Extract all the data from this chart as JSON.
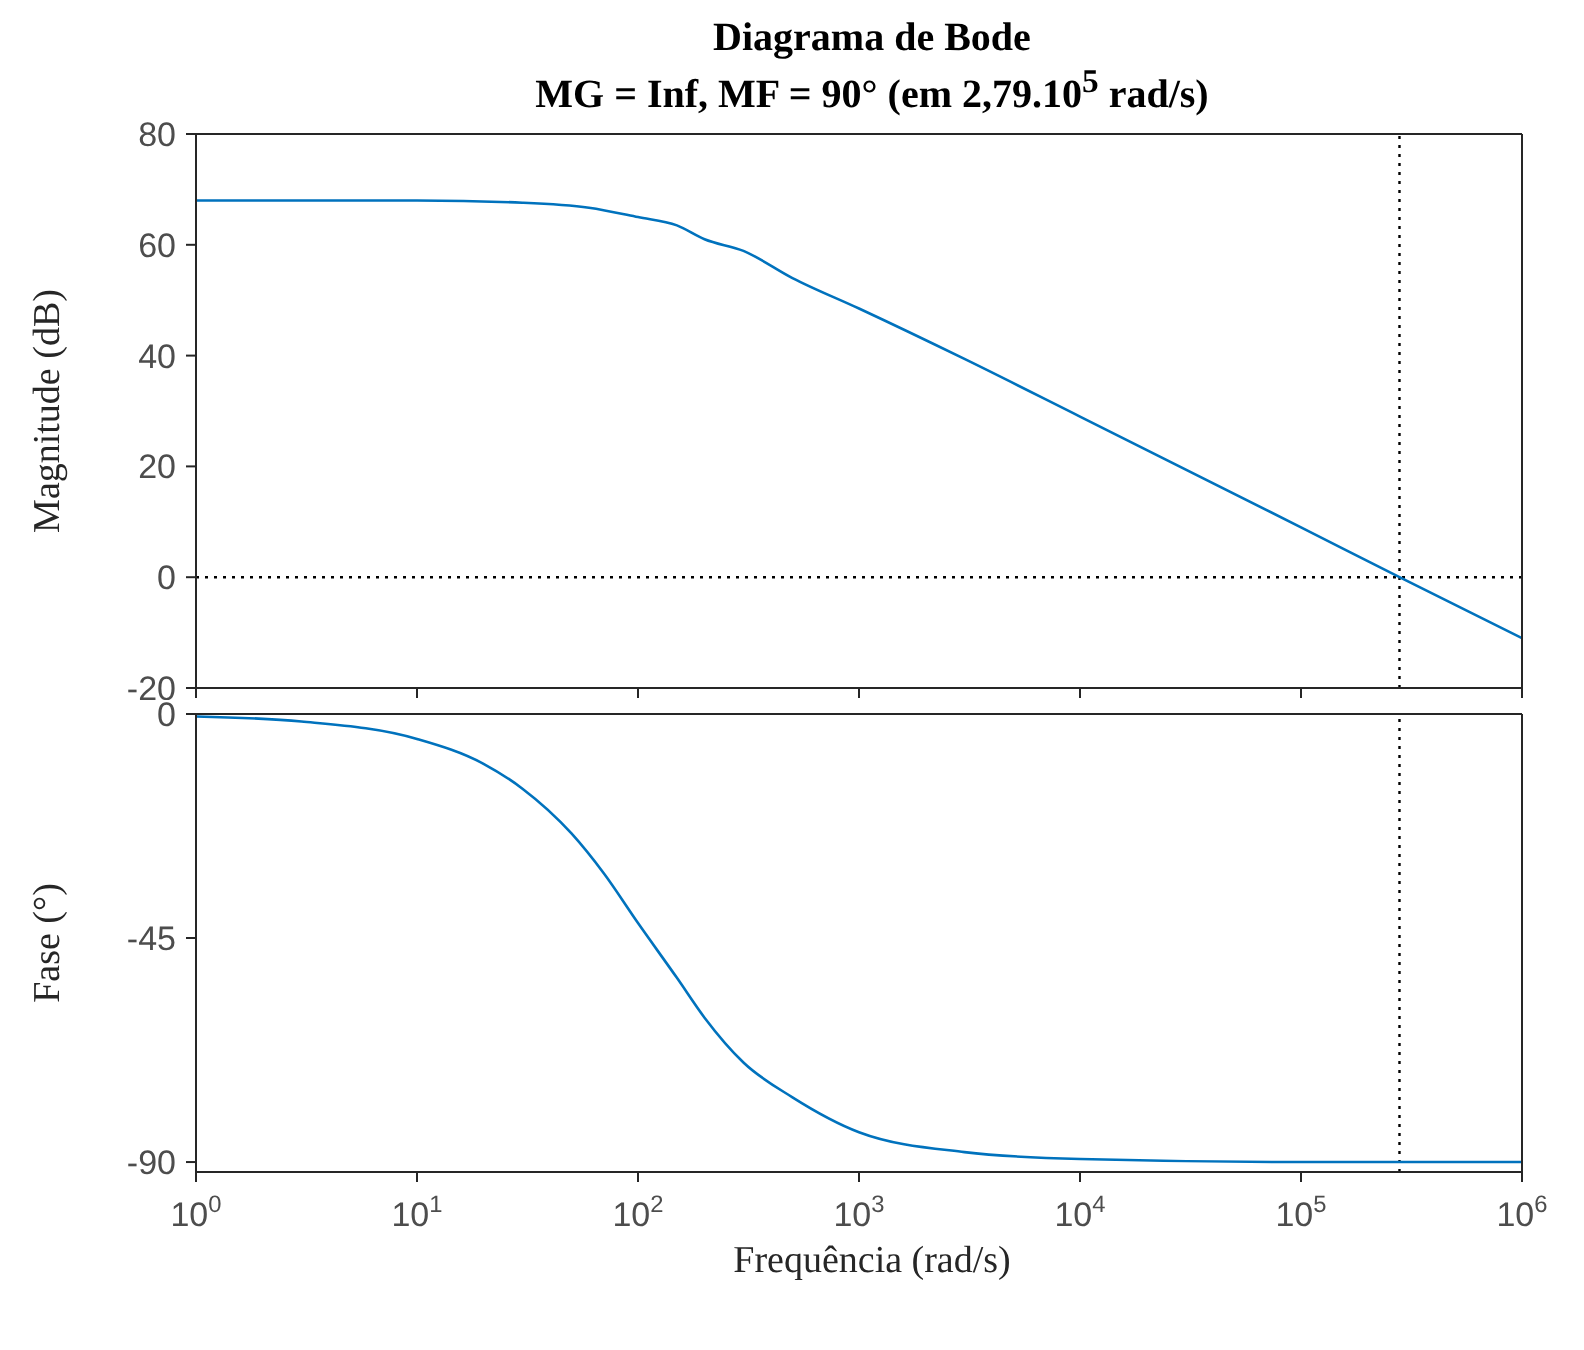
{
  "chart_data": [
    {
      "type": "line",
      "title": "Diagrama de Bode",
      "subtitle": "MG = Inf, MF = 90° (em 2,79.10$^{5}$ rad/s)",
      "ylabel": "Magnitude (dB)",
      "x": [
        1,
        10,
        30,
        60,
        100,
        150,
        200,
        300,
        500,
        1000,
        3000,
        10000,
        100000,
        279000,
        1000000
      ],
      "series": [
        {
          "color": "#0072bd",
          "values": [
            68,
            68,
            67.6,
            66.7,
            65,
            63.5,
            61,
            58.9,
            54,
            48.5,
            39.4,
            29,
            9,
            0,
            -11
          ]
        }
      ],
      "xlim": [
        1,
        1000000
      ],
      "xticks": [
        {
          "value": 1,
          "label": null
        },
        {
          "value": 10,
          "label": null
        },
        {
          "value": 100,
          "label": null
        },
        {
          "value": 1000,
          "label": null
        },
        {
          "value": 10000,
          "label": null
        },
        {
          "value": 100000,
          "label": null
        },
        {
          "value": 1000000,
          "label": null
        }
      ],
      "ylim": [
        -20,
        80
      ],
      "yticks": [
        -20,
        0,
        20,
        40,
        60,
        80
      ],
      "log": "x",
      "grid": false,
      "tick_labels": "y",
      "line_style": "solid",
      "ref_lines": [
        {
          "axis": "y",
          "value": 0,
          "color": "#000000",
          "line_style": "dotted"
        },
        {
          "axis": "x",
          "value": 279000,
          "color": "#000000",
          "line_style": "dotted"
        }
      ]
    },
    {
      "type": "line",
      "xlabel": "Frequência (rad/s)",
      "ylabel": "Fase (°)",
      "x": [
        1,
        3,
        10,
        20,
        30,
        50,
        70,
        100,
        150,
        200,
        300,
        500,
        1000,
        3000,
        10000,
        100000,
        1000000
      ],
      "series": [
        {
          "color": "#0072bd",
          "values": [
            -0.5,
            -1.5,
            -5,
            -10,
            -15,
            -24,
            -32,
            -42,
            -53,
            -61,
            -70,
            -77,
            -84,
            -88,
            -89.4,
            -90,
            -90
          ]
        }
      ],
      "xlim": [
        1,
        1000000
      ],
      "xticks": [
        {
          "value": 1,
          "label": "10$^{0}$"
        },
        {
          "value": 10,
          "label": "10$^{1}$"
        },
        {
          "value": 100,
          "label": "10$^{2}$"
        },
        {
          "value": 1000,
          "label": "10$^{3}$"
        },
        {
          "value": 10000,
          "label": "10$^{4}$"
        },
        {
          "value": 100000,
          "label": "10$^{5}$"
        },
        {
          "value": 1000000,
          "label": "10$^{6}$"
        }
      ],
      "ylim": [
        -92,
        0
      ],
      "yticks": [
        -90,
        -45,
        0
      ],
      "log": "x",
      "grid": false,
      "line_style": "solid",
      "ref_lines": [
        {
          "axis": "x",
          "value": 279000,
          "color": "#000000",
          "line_style": "dotted"
        }
      ]
    }
  ]
}
